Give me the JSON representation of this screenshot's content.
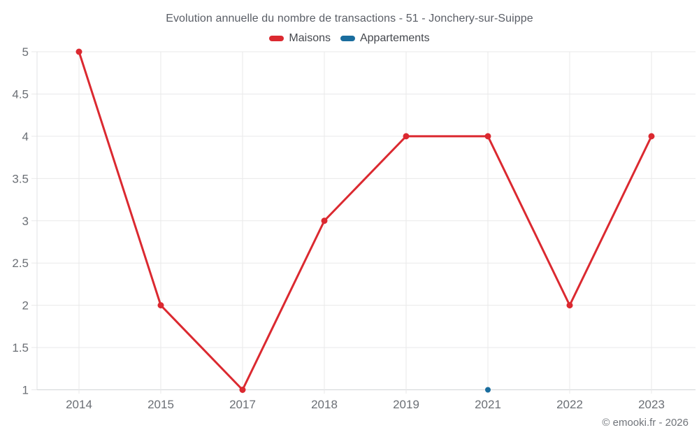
{
  "page": {
    "copyright": "© emooki.fr - 2026"
  },
  "chart_data": {
    "type": "line",
    "title": "Evolution annuelle du nombre de transactions - 51 - Jonchery-sur-Suippe",
    "categories": [
      "2014",
      "2015",
      "2017",
      "2018",
      "2019",
      "2021",
      "2022",
      "2023"
    ],
    "series": [
      {
        "name": "Maisons",
        "color": "#db2930",
        "values": [
          5,
          2,
          1,
          3,
          4,
          4,
          2,
          4
        ],
        "line_width": 3,
        "marker_radius": 4.5
      },
      {
        "name": "Appartements",
        "color": "#1a6d9e",
        "values": [
          null,
          null,
          null,
          null,
          null,
          1,
          null,
          null
        ],
        "line_width": 3,
        "marker_radius": 4
      }
    ],
    "yticks": [
      1,
      1.5,
      2,
      2.5,
      3,
      3.5,
      4,
      4.5,
      5
    ],
    "ylim": [
      1,
      5
    ],
    "xlabel": "",
    "ylabel": "",
    "grid": true,
    "legend_position": "top",
    "colors": {
      "grid": "#e9e9ea",
      "baseline": "#d2d4d6",
      "axis_line": "#e2e3e4",
      "axis_label": "#6b6f75",
      "title": "#5a5e66"
    }
  }
}
